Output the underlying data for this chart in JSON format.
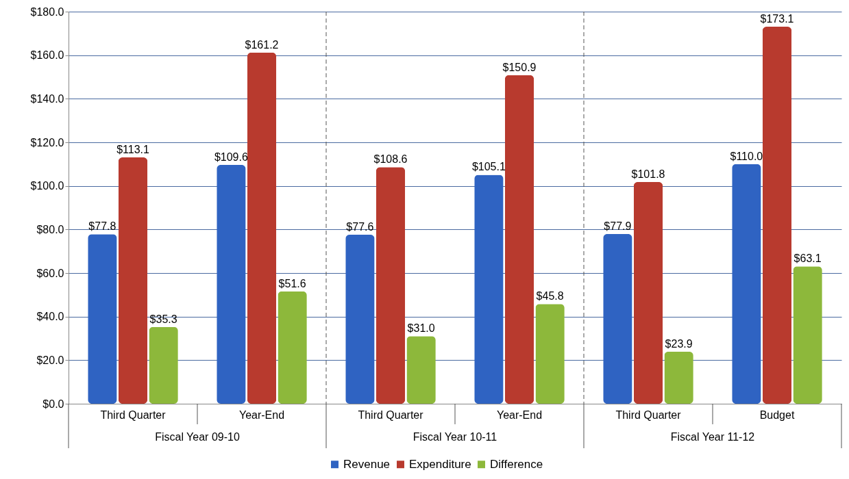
{
  "chart_data": {
    "type": "bar",
    "categories": [
      "Third Quarter",
      "Year-End",
      "Third Quarter",
      "Year-End",
      "Third Quarter",
      "Budget"
    ],
    "series": [
      {
        "name": "Revenue",
        "color": "#2f63c2",
        "values": [
          77.8,
          109.6,
          77.6,
          105.1,
          77.9,
          110.0
        ],
        "value_labels": [
          "$77.8",
          "$109.6",
          "$77.6",
          "$105.1",
          "$77.9",
          "$110.0"
        ]
      },
      {
        "name": "Expenditure",
        "color": "#b83a2e",
        "values": [
          113.1,
          161.2,
          108.6,
          150.9,
          101.8,
          173.1
        ],
        "value_labels": [
          "$113.1",
          "$161.2",
          "$108.6",
          "$150.9",
          "$101.8",
          "$173.1"
        ]
      },
      {
        "name": "Difference",
        "color": "#8db83b",
        "values": [
          35.3,
          51.6,
          31.0,
          45.8,
          23.9,
          63.1
        ],
        "value_labels": [
          "$35.3",
          "$51.6",
          "$31.0",
          "$45.8",
          "$23.9",
          "$63.1"
        ]
      }
    ],
    "annotations": [
      "Fiscal Year 09-10",
      "Fiscal Year 10-11",
      "Fiscal Year 11-12"
    ],
    "ylim": [
      0,
      180
    ],
    "yticks": [
      {
        "value": 0,
        "label": "$0.0"
      },
      {
        "value": 20,
        "label": "$20.0"
      },
      {
        "value": 40,
        "label": "$40.0"
      },
      {
        "value": 60,
        "label": "$60.0"
      },
      {
        "value": 80,
        "label": "$80.0"
      },
      {
        "value": 100,
        "label": "$100.0"
      },
      {
        "value": 120,
        "label": "$120.0"
      },
      {
        "value": 140,
        "label": "$140.0"
      },
      {
        "value": 160,
        "label": "$160.0"
      },
      {
        "value": 180,
        "label": "$180.0"
      }
    ],
    "grid": "y",
    "legend": "bottom"
  }
}
